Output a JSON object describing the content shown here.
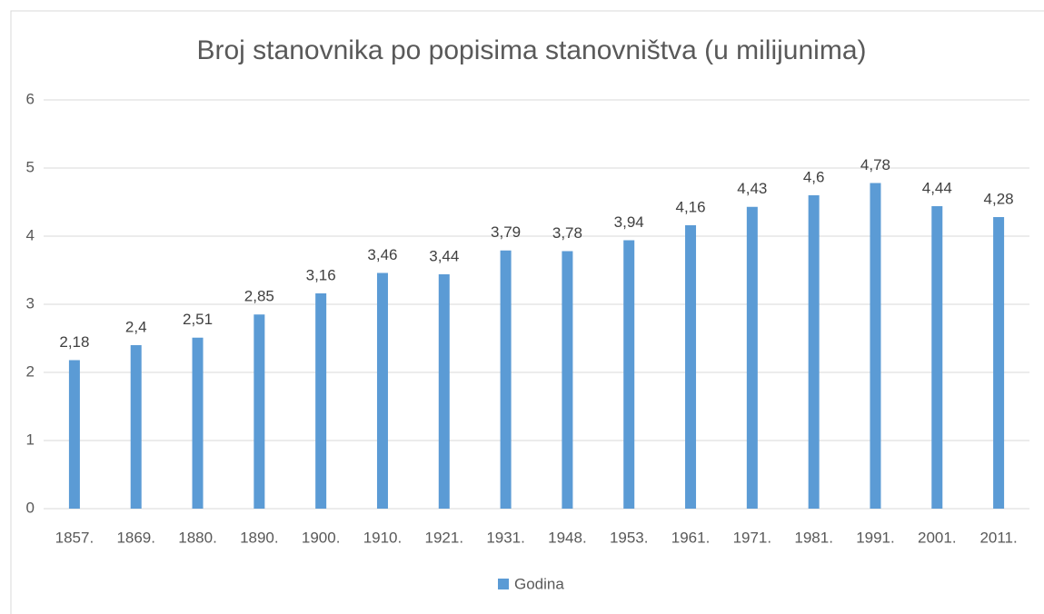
{
  "chart_data": {
    "type": "bar",
    "title": "Broj stanovnika po popisima stanovništva (u milijunima)",
    "categories": [
      "1857.",
      "1869.",
      "1880.",
      "1890.",
      "1900.",
      "1910.",
      "1921.",
      "1931.",
      "1948.",
      "1953.",
      "1961.",
      "1971.",
      "1981.",
      "1991.",
      "2001.",
      "2011."
    ],
    "series": [
      {
        "name": "Godina",
        "color": "#5b9bd5",
        "values": [
          2.18,
          2.4,
          2.51,
          2.85,
          3.16,
          3.46,
          3.44,
          3.79,
          3.78,
          3.94,
          4.16,
          4.43,
          4.6,
          4.78,
          4.44,
          4.28
        ],
        "value_labels": [
          "2,18",
          "2,4",
          "2,51",
          "2,85",
          "3,16",
          "3,46",
          "3,44",
          "3,79",
          "3,78",
          "3,94",
          "4,16",
          "4,43",
          "4,6",
          "4,78",
          "4,44",
          "4,28"
        ]
      }
    ],
    "ylim": [
      0,
      6
    ],
    "yticks": [
      0,
      1,
      2,
      3,
      4,
      5,
      6
    ],
    "grid": true,
    "legend": "bottom"
  }
}
